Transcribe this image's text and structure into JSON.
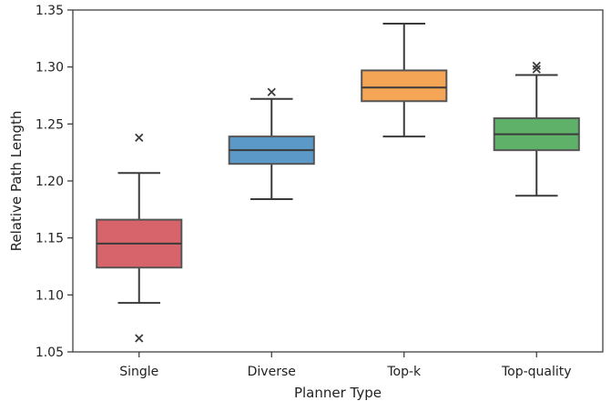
{
  "chart_data": {
    "type": "box",
    "title": "",
    "xlabel": "Planner Type",
    "ylabel": "Relative Path Length",
    "ylim": [
      1.05,
      1.35
    ],
    "yticks": [
      "1.05",
      "1.10",
      "1.15",
      "1.20",
      "1.25",
      "1.30",
      "1.35"
    ],
    "grid": false,
    "categories": [
      "Single",
      "Diverse",
      "Top-k",
      "Top-quality"
    ],
    "boxes": [
      {
        "name": "Single",
        "whisker_low": 1.093,
        "q1": 1.124,
        "median": 1.145,
        "q3": 1.166,
        "whisker_high": 1.207,
        "outliers": [
          1.238,
          1.062
        ],
        "color": "#d7646a"
      },
      {
        "name": "Diverse",
        "whisker_low": 1.184,
        "q1": 1.215,
        "median": 1.227,
        "q3": 1.239,
        "whisker_high": 1.272,
        "outliers": [
          1.278
        ],
        "color": "#5b9ac8"
      },
      {
        "name": "Top-k",
        "whisker_low": 1.239,
        "q1": 1.27,
        "median": 1.282,
        "q3": 1.297,
        "whisker_high": 1.338,
        "outliers": [],
        "color": "#f5a556"
      },
      {
        "name": "Top-quality",
        "whisker_low": 1.187,
        "q1": 1.227,
        "median": 1.241,
        "q3": 1.255,
        "whisker_high": 1.293,
        "outliers": [
          1.301,
          1.298
        ],
        "color": "#5fb068"
      }
    ]
  }
}
